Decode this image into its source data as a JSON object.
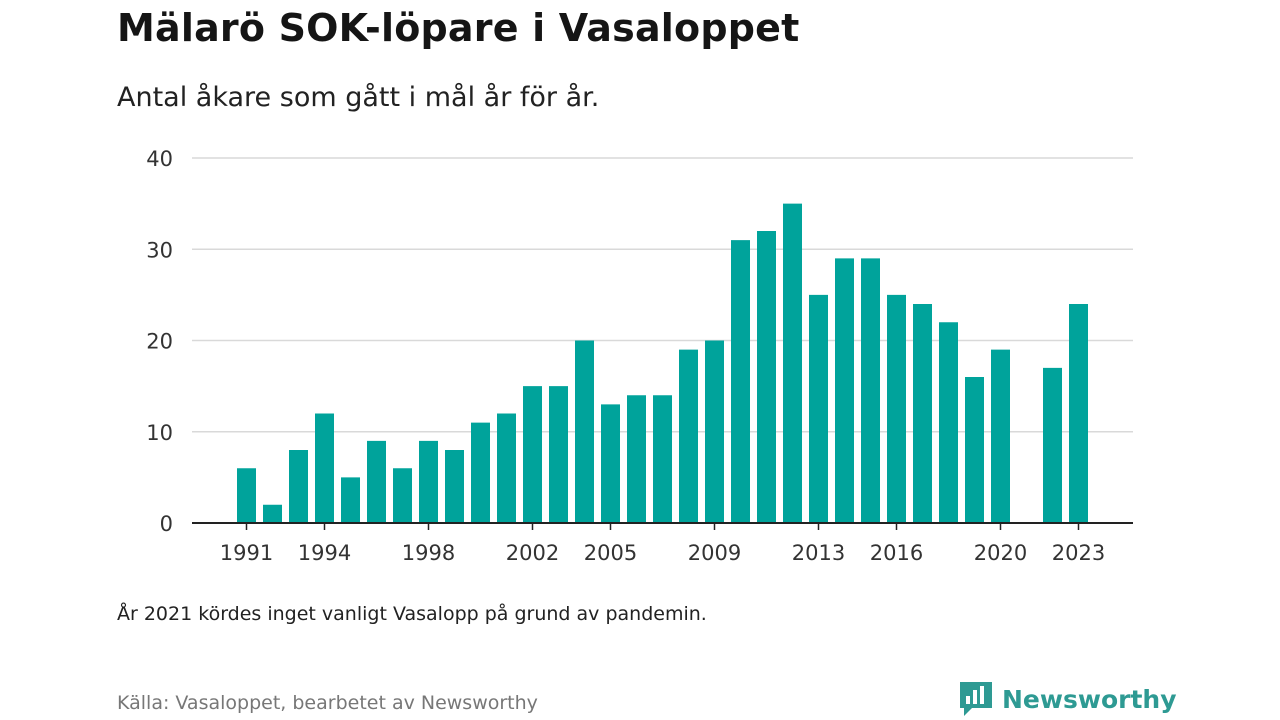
{
  "title": "Mälarö SOK-löpare i Vasaloppet",
  "subtitle": "Antal åkare som gått i mål år för år.",
  "note": "År 2021 kördes inget vanligt Vasalopp på grund av pandemin.",
  "source": "Källa: Vasaloppet, bearbetet av Newsworthy",
  "brand": {
    "name": "Newsworthy",
    "icon": "newsworthy-logo-icon",
    "color": "#2e9a93"
  },
  "chart_data": {
    "type": "bar",
    "title": "Mälarö SOK-löpare i Vasaloppet",
    "subtitle": "Antal åkare som gått i mål år för år.",
    "xlabel": "",
    "ylabel": "",
    "ylim": [
      0,
      40
    ],
    "yticks": [
      0,
      10,
      20,
      30,
      40
    ],
    "xticks": [
      1991,
      1994,
      1998,
      2002,
      2005,
      2009,
      2013,
      2016,
      2020,
      2023
    ],
    "grid": true,
    "legend": "none",
    "bar_color": "#00a39b",
    "x": [
      1991,
      1992,
      1993,
      1994,
      1995,
      1996,
      1997,
      1998,
      1999,
      2000,
      2001,
      2002,
      2003,
      2004,
      2005,
      2006,
      2007,
      2008,
      2009,
      2010,
      2011,
      2012,
      2013,
      2014,
      2015,
      2016,
      2017,
      2018,
      2019,
      2020,
      2022,
      2023
    ],
    "values": [
      6,
      2,
      8,
      12,
      5,
      9,
      6,
      9,
      8,
      11,
      12,
      15,
      15,
      20,
      13,
      14,
      14,
      19,
      20,
      31,
      32,
      35,
      25,
      29,
      29,
      25,
      24,
      22,
      16,
      19,
      17,
      24
    ]
  }
}
